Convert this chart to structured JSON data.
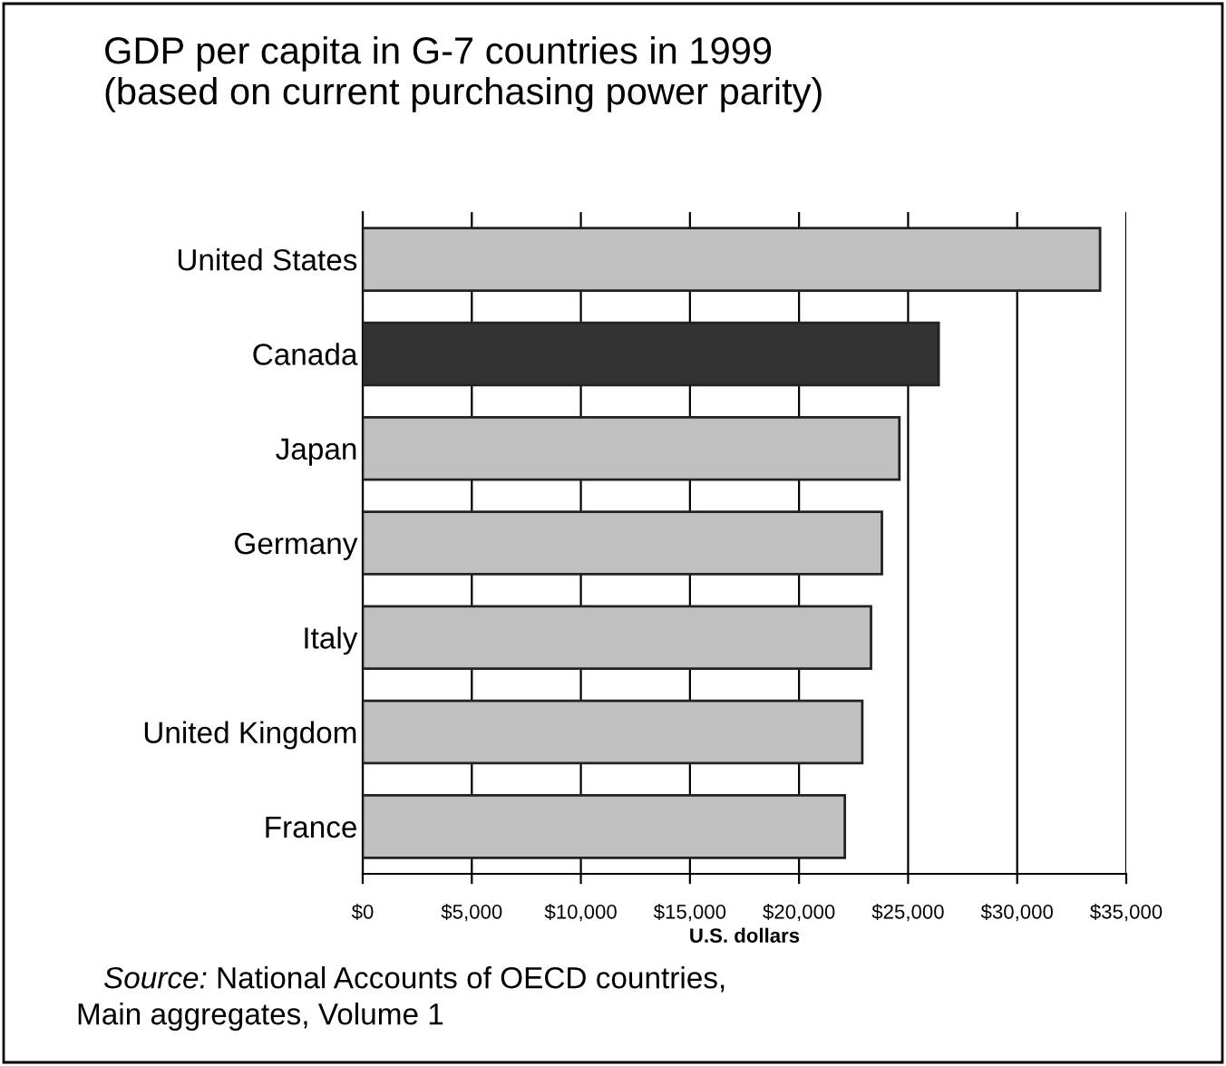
{
  "chart_data": {
    "type": "bar",
    "orientation": "horizontal",
    "title": "GDP per capita in G-7 countries in 1999\n(based on current purchasing power parity)",
    "xlabel": "U.S. dollars",
    "categories": [
      "United States",
      "Canada",
      "Japan",
      "Germany",
      "Italy",
      "United Kingdom",
      "France"
    ],
    "values": [
      33800,
      26400,
      24600,
      23800,
      23300,
      22900,
      22100
    ],
    "colors": [
      "#c0c0c0",
      "#333333",
      "#c0c0c0",
      "#c0c0c0",
      "#c0c0c0",
      "#c0c0c0",
      "#c0c0c0"
    ],
    "xlim": [
      0,
      35000
    ],
    "xticks": [
      {
        "value": 0,
        "label": "$0"
      },
      {
        "value": 5000,
        "label": "$5,000"
      },
      {
        "value": 10000,
        "label": "$10,000"
      },
      {
        "value": 15000,
        "label": "$15,000"
      },
      {
        "value": 20000,
        "label": "$20,000"
      },
      {
        "value": 25000,
        "label": "$25,000"
      },
      {
        "value": 30000,
        "label": "$30,000"
      },
      {
        "value": 35000,
        "label": "$35,000"
      }
    ],
    "grid": "x",
    "annotations": [
      "Source: National Accounts of OECD countries,\nMain aggregates, Volume 1"
    ]
  }
}
